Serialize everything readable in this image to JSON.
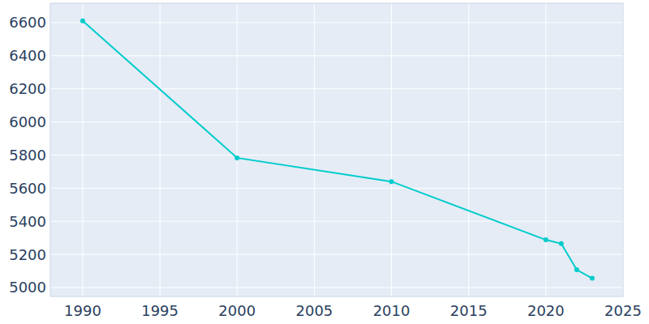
{
  "chart_data": {
    "type": "line",
    "x": [
      1990,
      2000,
      2010,
      2020,
      2021,
      2022,
      2023
    ],
    "values": [
      6610,
      5783,
      5640,
      5288,
      5265,
      5107,
      5056
    ],
    "color": "#00cccc",
    "marker": "circle",
    "xlim": [
      1987.9,
      2025
    ],
    "xticks": [
      1990,
      1995,
      2000,
      2005,
      2010,
      2015,
      2020,
      2025
    ],
    "ylim": [
      4946,
      6717
    ],
    "yticks": [
      5000,
      5200,
      5400,
      5600,
      5800,
      6000,
      6200,
      6400,
      6600
    ],
    "grid": true
  }
}
